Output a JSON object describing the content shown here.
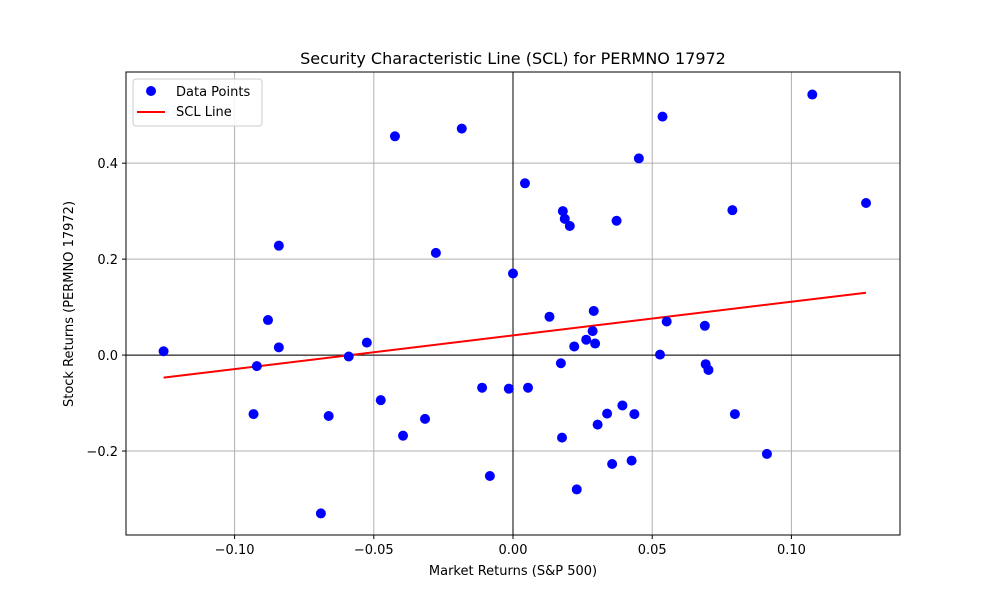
{
  "chart_data": {
    "type": "scatter",
    "title": "Security Characteristic Line (SCL) for PERMNO 17972",
    "xlabel": "Market Returns (S&P 500)",
    "ylabel": "Stock Returns (PERMNO 17972)",
    "xlim": [
      -0.139,
      0.139
    ],
    "ylim": [
      -0.375,
      0.59
    ],
    "xticks": [
      -0.1,
      -0.05,
      0.0,
      0.05,
      0.1
    ],
    "xtick_labels": [
      "−0.10",
      "−0.05",
      "0.00",
      "0.05",
      "0.10"
    ],
    "yticks": [
      -0.2,
      0.0,
      0.2,
      0.4
    ],
    "ytick_labels": [
      "−0.2",
      "0.0",
      "0.2",
      "0.4"
    ],
    "grid": true,
    "legend_position": "top-left",
    "reference_lines": {
      "x": 0,
      "y": 0
    },
    "series": [
      {
        "name": "Data Points",
        "kind": "scatter",
        "color": "#0000ff",
        "points": [
          [
            -0.1255,
            0.008
          ],
          [
            -0.0932,
            -0.123
          ],
          [
            -0.092,
            -0.023
          ],
          [
            -0.088,
            0.073
          ],
          [
            -0.0841,
            0.228
          ],
          [
            -0.0841,
            0.016
          ],
          [
            -0.069,
            -0.33
          ],
          [
            -0.0662,
            -0.127
          ],
          [
            -0.059,
            -0.003
          ],
          [
            -0.0525,
            0.026
          ],
          [
            -0.0475,
            -0.094
          ],
          [
            -0.0424,
            0.456
          ],
          [
            -0.0395,
            -0.168
          ],
          [
            -0.0316,
            -0.133
          ],
          [
            -0.0277,
            0.213
          ],
          [
            -0.0184,
            0.472
          ],
          [
            -0.0111,
            -0.068
          ],
          [
            -0.0083,
            -0.252
          ],
          [
            -0.0015,
            -0.07
          ],
          [
            0.0,
            0.17
          ],
          [
            0.0043,
            0.358
          ],
          [
            0.0054,
            -0.068
          ],
          [
            0.0131,
            0.08
          ],
          [
            0.0172,
            -0.017
          ],
          [
            0.0176,
            -0.172
          ],
          [
            0.0179,
            0.3
          ],
          [
            0.0186,
            0.284
          ],
          [
            0.0204,
            0.269
          ],
          [
            0.022,
            0.018
          ],
          [
            0.0229,
            -0.28
          ],
          [
            0.0263,
            0.032
          ],
          [
            0.0286,
            0.05
          ],
          [
            0.029,
            0.092
          ],
          [
            0.0295,
            0.024
          ],
          [
            0.0304,
            -0.145
          ],
          [
            0.0338,
            -0.122
          ],
          [
            0.0356,
            -0.227
          ],
          [
            0.0372,
            0.28
          ],
          [
            0.0393,
            -0.105
          ],
          [
            0.0426,
            -0.22
          ],
          [
            0.0436,
            -0.123
          ],
          [
            0.0452,
            0.41
          ],
          [
            0.0528,
            0.001
          ],
          [
            0.0537,
            0.497
          ],
          [
            0.0552,
            0.07
          ],
          [
            0.0689,
            0.061
          ],
          [
            0.0692,
            -0.019
          ],
          [
            0.0702,
            -0.031
          ],
          [
            0.0788,
            0.302
          ],
          [
            0.0797,
            -0.123
          ],
          [
            0.0912,
            -0.206
          ],
          [
            0.1075,
            0.543
          ],
          [
            0.1268,
            0.317
          ]
        ]
      },
      {
        "name": "SCL Line",
        "kind": "line",
        "color": "#ff0000",
        "points": [
          [
            -0.1255,
            -0.047
          ],
          [
            0.1268,
            0.13
          ]
        ]
      }
    ]
  }
}
